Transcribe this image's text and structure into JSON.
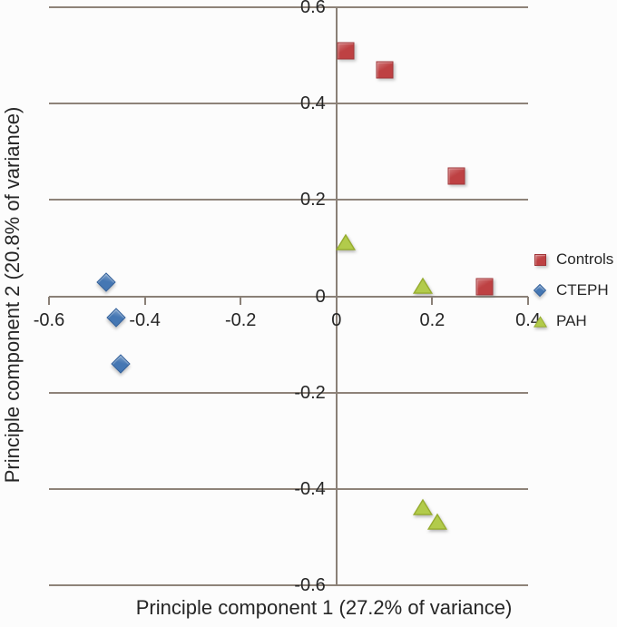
{
  "figure": {
    "background": "#FCFCFC",
    "grid_color": "#8E8379",
    "axis_color": "#8A8077",
    "text_color": "#262626"
  },
  "chart_data": {
    "type": "scatter",
    "title": "",
    "xlabel": "Principle component 1 (27.2% of variance)",
    "ylabel": "Principle component 2 (20.8% of variance)",
    "xlim": [
      -0.6,
      0.4
    ],
    "ylim": [
      -0.6,
      0.6
    ],
    "xtick_values": [
      -0.6,
      -0.4,
      -0.2,
      0,
      0.2,
      0.4
    ],
    "xtick_labels": [
      "-0.6",
      "-0.4",
      "-0.2",
      "0",
      "0.2",
      "0.4"
    ],
    "ytick_values": [
      0.6,
      0.4,
      0.2,
      0,
      -0.2,
      -0.4,
      -0.6
    ],
    "ytick_labels": [
      "0.6",
      "0.4",
      "0.2",
      "0",
      "-0.2",
      "-0.4",
      "-0.6"
    ],
    "grid": "horizontal",
    "legend_position": "right",
    "series": [
      {
        "name": "Controls",
        "marker": "square",
        "fill": "#BE4143",
        "stroke": "#A03538",
        "points": [
          [
            0.02,
            0.51
          ],
          [
            0.1,
            0.47
          ],
          [
            0.25,
            0.25
          ],
          [
            0.31,
            0.02
          ]
        ]
      },
      {
        "name": "CTEPH",
        "marker": "diamond",
        "fill": "#4577B3",
        "stroke": "#38649C",
        "points": [
          [
            -0.48,
            0.03
          ],
          [
            -0.46,
            -0.045
          ],
          [
            -0.45,
            -0.14
          ]
        ]
      },
      {
        "name": "PAH",
        "marker": "triangle",
        "fill": "#B2CB4B",
        "stroke": "#96AC2F",
        "points": [
          [
            0.02,
            0.11
          ],
          [
            0.18,
            0.02
          ],
          [
            0.18,
            -0.44
          ],
          [
            0.21,
            -0.47
          ]
        ]
      }
    ]
  }
}
